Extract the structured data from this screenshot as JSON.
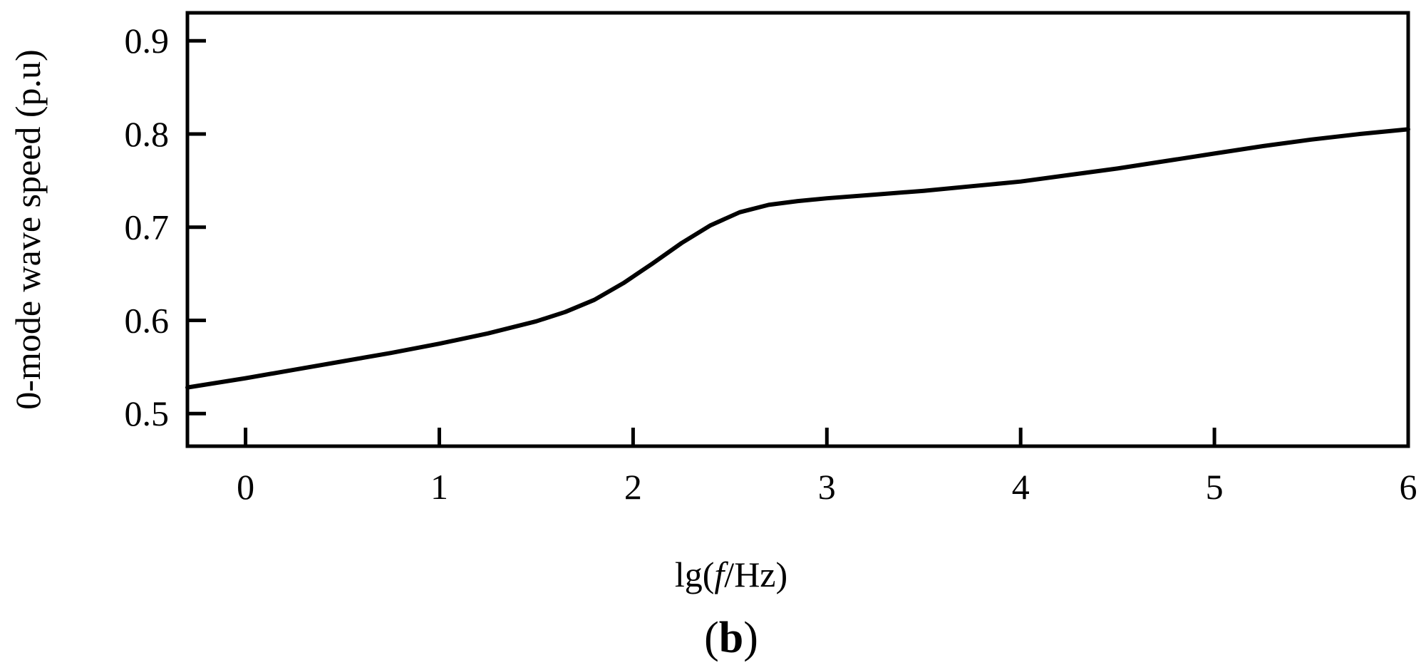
{
  "chart_data": {
    "type": "line",
    "title": "",
    "xlabel": {
      "prefix": "lg(",
      "italic": "f",
      "suffix": "/Hz)"
    },
    "ylabel": "0-mode wave speed (p.u)",
    "panel_label": {
      "open": "(",
      "letter": "b",
      "close": ")"
    },
    "xlim": [
      -0.3,
      6
    ],
    "ylim": [
      0.465,
      0.93
    ],
    "xticks": [
      0,
      1,
      2,
      3,
      4,
      5,
      6
    ],
    "yticks": [
      0.5,
      0.6,
      0.7,
      0.8,
      0.9
    ],
    "grid": false,
    "legend": "none",
    "line_color": "#000000",
    "series": [
      {
        "x": [
          -0.3,
          0.0,
          0.25,
          0.5,
          0.75,
          1.0,
          1.25,
          1.5,
          1.65,
          1.8,
          1.95,
          2.1,
          2.25,
          2.4,
          2.55,
          2.7,
          2.85,
          3.0,
          3.25,
          3.5,
          3.75,
          4.0,
          4.25,
          4.5,
          4.75,
          5.0,
          5.25,
          5.5,
          5.75,
          6.0
        ],
        "y": [
          0.528,
          0.538,
          0.547,
          0.556,
          0.565,
          0.575,
          0.586,
          0.599,
          0.609,
          0.622,
          0.64,
          0.661,
          0.683,
          0.702,
          0.716,
          0.724,
          0.728,
          0.731,
          0.735,
          0.739,
          0.744,
          0.749,
          0.756,
          0.763,
          0.771,
          0.779,
          0.787,
          0.794,
          0.8,
          0.805
        ]
      }
    ]
  }
}
